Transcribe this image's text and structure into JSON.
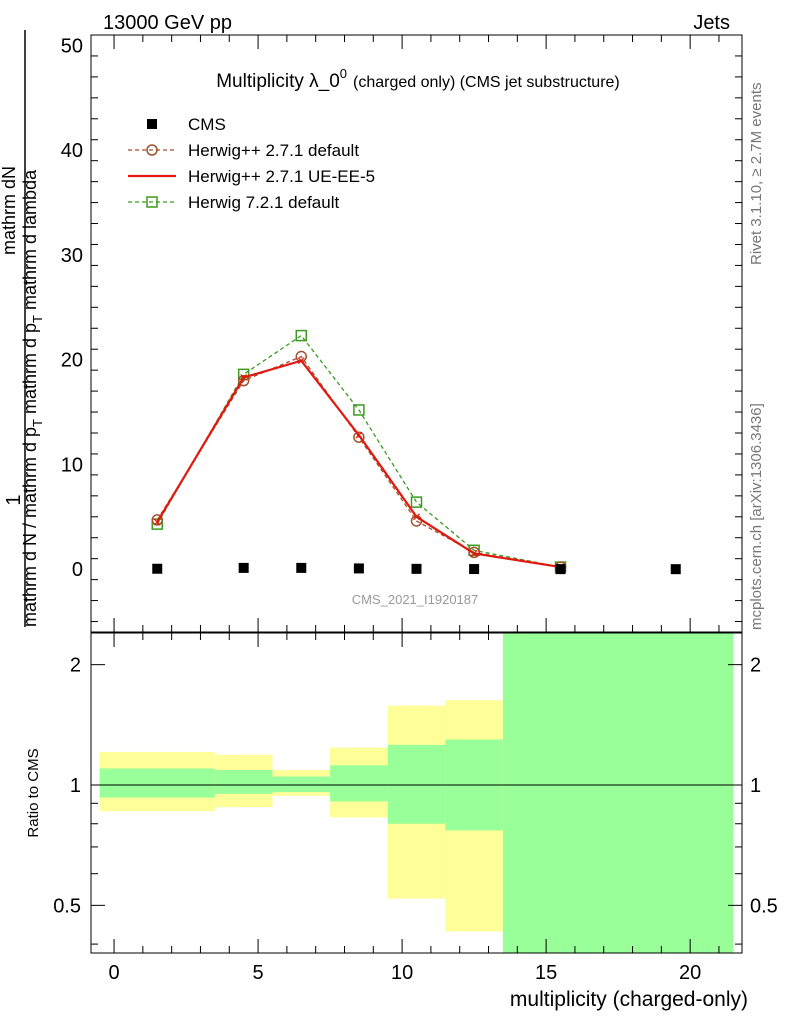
{
  "header": {
    "left": "13000 GeV pp",
    "right": "Jets"
  },
  "side_labels": {
    "rivet": "Rivet 3.1.10, ≥ 2.7M events",
    "mcplots": "mcplots.cern.ch [arXiv:1306.3436]"
  },
  "colors": {
    "cms": "#000000",
    "herwig_default": "#a0522d",
    "herwig_uee5": "#e3170d",
    "herwig7": "#3b9a1f",
    "band_outer": "#ffff99",
    "band_inner": "#99ff99"
  },
  "chart_data": {
    "type": "line",
    "title": "Multiplicity λ_0^0 (charged only) (CMS jet substructure)",
    "title_main": "Multiplicity λ_0",
    "title_sup": "0",
    "title_sub": "(charged only) (CMS jet substructure)",
    "watermark": "CMS_2021_I1920187",
    "ylabel_numerator": "1",
    "ylabel_denominator": "mathrm d N / mathrm d p_T mathrm d p_T mathrm d lambda",
    "ylabel_top": "mathrm d",
    "ylabel_top2": "N",
    "ylabel_bottom": "mathrm d N / mathrm d p",
    "ylabel_bottom_mid": "mathrm d p",
    "ylabel_bottom_end": "mathrm d lambda",
    "ylabel_T": "T",
    "xlabel": "multiplicity (charged-only)",
    "xlim": [
      -0.8,
      21.8
    ],
    "ylim": [
      -6.0,
      51.0
    ],
    "x_ticks": [
      "0",
      "5",
      "10",
      "15",
      "20"
    ],
    "x_tick_values": [
      0,
      5,
      10,
      15,
      20
    ],
    "y_ticks": [
      "0",
      "10",
      "20",
      "30",
      "40",
      "50"
    ],
    "y_tick_values": [
      0,
      10,
      20,
      30,
      40,
      50
    ],
    "legend": [
      {
        "label": "CMS",
        "key": "cms"
      },
      {
        "label": "Herwig++ 2.7.1 default",
        "key": "herwig_default"
      },
      {
        "label": "Herwig++ 2.7.1 UE-EE-5",
        "key": "herwig_uee5"
      },
      {
        "label": "Herwig 7.2.1 default",
        "key": "herwig7"
      }
    ],
    "legend_placement": "top-left",
    "series": [
      {
        "name": "CMS",
        "key": "cms",
        "x": [
          1.5,
          4.5,
          6.5,
          8.5,
          10.5,
          12.5,
          15.5,
          19.5
        ],
        "y": [
          0.04,
          0.12,
          0.12,
          0.07,
          0.03,
          0.01,
          0.003,
          0.0
        ]
      },
      {
        "name": "Herwig++ 2.7.1 default",
        "key": "herwig_default",
        "x": [
          1.5,
          4.5,
          6.5,
          8.5,
          10.5,
          12.5,
          15.5
        ],
        "y": [
          4.7,
          18.0,
          20.3,
          12.6,
          4.6,
          1.6,
          0.2
        ]
      },
      {
        "name": "Herwig++ 2.7.1 UE-EE-5",
        "key": "herwig_uee5",
        "x": [
          1.5,
          4.5,
          6.5,
          8.5,
          10.5,
          12.5,
          15.5
        ],
        "y": [
          4.5,
          18.3,
          19.9,
          12.8,
          5.0,
          1.5,
          0.2
        ]
      },
      {
        "name": "Herwig 7.2.1 default",
        "key": "herwig7",
        "x": [
          1.5,
          4.5,
          6.5,
          8.5,
          10.5,
          12.5,
          15.5
        ],
        "y": [
          4.3,
          18.6,
          22.3,
          15.2,
          6.4,
          1.8,
          0.2
        ]
      }
    ],
    "ratio": {
      "ylabel": "Ratio to CMS",
      "ylim": [
        0.38,
        2.4
      ],
      "log_scale": true,
      "y_ticks": [
        "0.5",
        "1",
        "2"
      ],
      "y_tick_values": [
        0.5,
        1,
        2
      ],
      "reference": 1,
      "bands": [
        {
          "x0": -0.5,
          "x1": 3.5,
          "outer": [
            0.86,
            1.21
          ],
          "inner": [
            0.93,
            1.1
          ]
        },
        {
          "x0": 3.5,
          "x1": 5.5,
          "outer": [
            0.88,
            1.19
          ],
          "inner": [
            0.95,
            1.09
          ]
        },
        {
          "x0": 5.5,
          "x1": 7.5,
          "outer": [
            0.94,
            1.09
          ],
          "inner": [
            0.96,
            1.05
          ]
        },
        {
          "x0": 7.5,
          "x1": 9.5,
          "outer": [
            0.83,
            1.24
          ],
          "inner": [
            0.91,
            1.12
          ]
        },
        {
          "x0": 9.5,
          "x1": 11.5,
          "outer": [
            0.52,
            1.58
          ],
          "inner": [
            0.8,
            1.26
          ]
        },
        {
          "x0": 11.5,
          "x1": 13.5,
          "outer": [
            0.43,
            1.63
          ],
          "inner": [
            0.77,
            1.3
          ]
        },
        {
          "x0": 13.5,
          "x1": 21.5,
          "outer": [
            0.3,
            2.5
          ],
          "inner": [
            0.3,
            2.5
          ]
        }
      ]
    }
  }
}
